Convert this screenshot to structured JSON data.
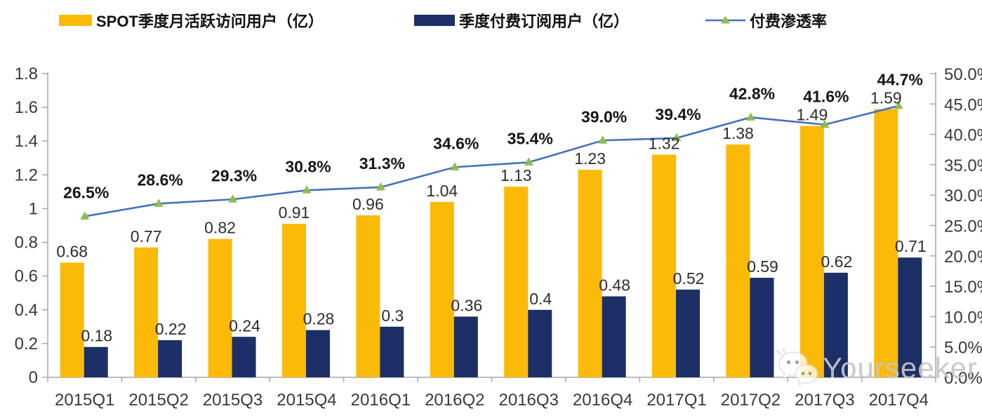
{
  "legend": {
    "items": [
      {
        "label": "SPOT季度月活跃访问用户（亿）",
        "swatch": "yellow-bar"
      },
      {
        "label": "季度付费订阅用户（亿）",
        "swatch": "navy-bar"
      },
      {
        "label": "付费渗透率",
        "swatch": "line-with-triangle-marker"
      }
    ]
  },
  "watermark": {
    "text": "Yourseeker",
    "icon": "wechat-chat-bubbles-icon"
  },
  "colors": {
    "mau_bar": "#FBBA08",
    "sub_bar": "#1C2F66",
    "line": "#4670BE",
    "marker": "#90BC51",
    "axis": "#A6A6A6",
    "watermark": "#C6C6C6"
  },
  "chart_data": {
    "type": "bar",
    "subtype": "grouped bars with secondary-axis line",
    "categories": [
      "2015Q1",
      "2015Q2",
      "2015Q3",
      "2015Q4",
      "2016Q1",
      "2016Q2",
      "2016Q3",
      "2016Q4",
      "2017Q1",
      "2017Q2",
      "2017Q3",
      "2017Q4"
    ],
    "series": [
      {
        "name": "SPOT季度月活跃访问用户（亿）",
        "type": "bar",
        "axis": "left",
        "values": [
          0.68,
          0.77,
          0.82,
          0.91,
          0.96,
          1.04,
          1.13,
          1.23,
          1.32,
          1.38,
          1.49,
          1.59
        ],
        "labels": [
          "0.68",
          "0.77",
          "0.82",
          "0.91",
          "0.96",
          "1.04",
          "1.13",
          "1.23",
          "1.32",
          "1.38",
          "1.49",
          "1.59"
        ]
      },
      {
        "name": "季度付费订阅用户（亿）",
        "type": "bar",
        "axis": "left",
        "values": [
          0.18,
          0.22,
          0.24,
          0.28,
          0.3,
          0.36,
          0.4,
          0.48,
          0.52,
          0.59,
          0.62,
          0.71
        ],
        "labels": [
          "0.18",
          "0.22",
          "0.24",
          "0.28",
          "0.3",
          "0.36",
          "0.4",
          "0.48",
          "0.52",
          "0.59",
          "0.62",
          "0.71"
        ]
      },
      {
        "name": "付费渗透率",
        "type": "line",
        "axis": "right",
        "values": [
          26.5,
          28.6,
          29.3,
          30.8,
          31.3,
          34.6,
          35.4,
          39.0,
          39.4,
          42.8,
          41.6,
          44.7
        ],
        "labels": [
          "26.5%",
          "28.6%",
          "29.3%",
          "30.8%",
          "31.3%",
          "34.6%",
          "35.4%",
          "39.0%",
          "39.4%",
          "42.8%",
          "41.6%",
          "44.7%"
        ]
      }
    ],
    "axes": {
      "left": {
        "min": 0,
        "max": 1.8,
        "tick_labels": [
          "0",
          "0.2",
          "0.4",
          "0.6",
          "0.8",
          "1",
          "1.2",
          "1.4",
          "1.6",
          "1.8"
        ]
      },
      "right": {
        "min": 0,
        "max": 50,
        "tick_labels": [
          "0.0%",
          "5.0%",
          "10.0%",
          "15.0%",
          "20.0%",
          "25.0%",
          "30.0%",
          "35.0%",
          "40.0%",
          "45.0%",
          "50.0%"
        ]
      }
    },
    "title": "",
    "xlabel": "",
    "ylabel": "",
    "grid": false,
    "legend_position": "top"
  }
}
